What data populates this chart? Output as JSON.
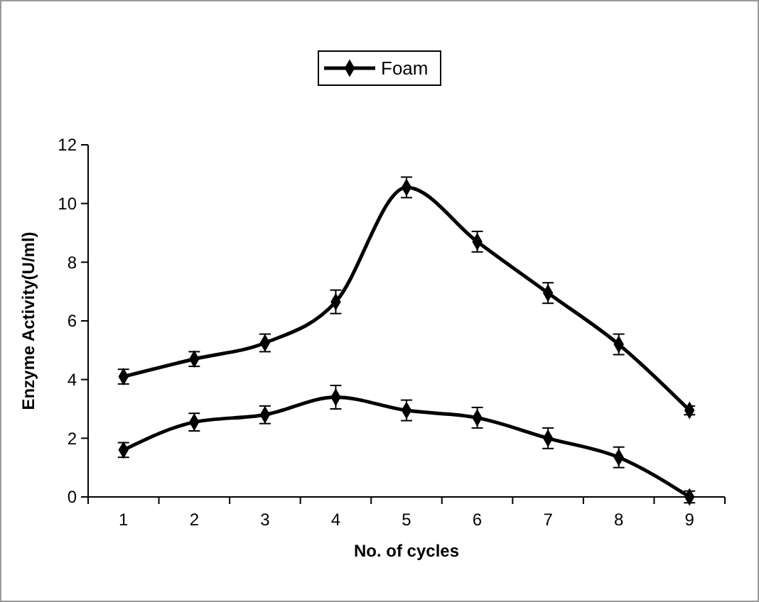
{
  "chart_data": {
    "type": "line",
    "xlabel": "No. of cycles",
    "ylabel": "Enzyme Activity(U/ml)",
    "categories": [
      "1",
      "2",
      "3",
      "4",
      "5",
      "6",
      "7",
      "8",
      "9"
    ],
    "series": [
      {
        "name": "Foam",
        "color": "#000000",
        "values": [
          4.1,
          4.7,
          5.25,
          6.65,
          10.55,
          8.7,
          6.95,
          5.2,
          2.95
        ],
        "errors": [
          0.25,
          0.25,
          0.3,
          0.4,
          0.35,
          0.35,
          0.35,
          0.35,
          0.15
        ]
      },
      {
        "color": "#000000",
        "values": [
          1.6,
          2.55,
          2.8,
          3.4,
          2.95,
          2.7,
          2.0,
          1.35,
          0.0
        ],
        "errors": [
          0.25,
          0.3,
          0.3,
          0.4,
          0.35,
          0.35,
          0.35,
          0.35,
          0.2
        ]
      }
    ],
    "ylim": [
      0,
      12
    ],
    "yticks": [
      0,
      2,
      4,
      6,
      8,
      10,
      12
    ],
    "grid": false,
    "legend": "top",
    "marker": "diamond",
    "line_style": "solid"
  }
}
